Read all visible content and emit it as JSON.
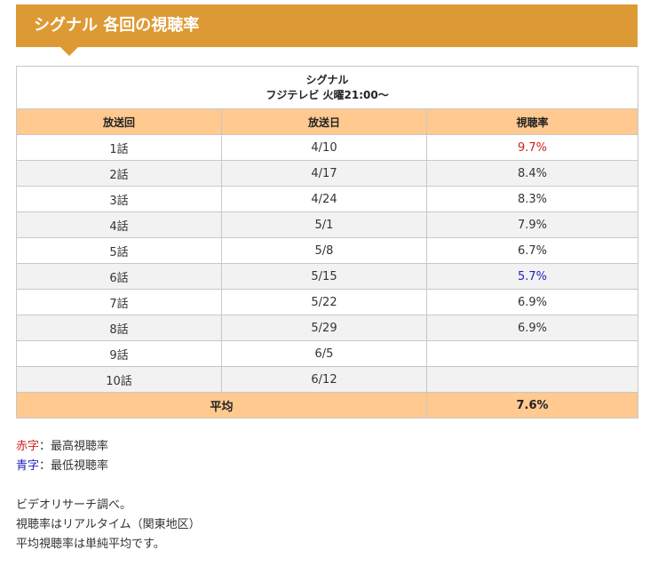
{
  "title": "シグナル 各回の視聴率",
  "table": {
    "caption_line1": "シグナル",
    "caption_line2": "フジテレビ 火曜21:00〜",
    "headers": [
      "放送回",
      "放送日",
      "視聴率"
    ],
    "rows": [
      {
        "episode": "1話",
        "date": "4/10",
        "rating": "9.7%",
        "mark": "high"
      },
      {
        "episode": "2話",
        "date": "4/17",
        "rating": "8.4%",
        "mark": ""
      },
      {
        "episode": "3話",
        "date": "4/24",
        "rating": "8.3%",
        "mark": ""
      },
      {
        "episode": "4話",
        "date": "5/1",
        "rating": "7.9%",
        "mark": ""
      },
      {
        "episode": "5話",
        "date": "5/8",
        "rating": "6.7%",
        "mark": ""
      },
      {
        "episode": "6話",
        "date": "5/15",
        "rating": "5.7%",
        "mark": "low"
      },
      {
        "episode": "7話",
        "date": "5/22",
        "rating": "6.9%",
        "mark": ""
      },
      {
        "episode": "8話",
        "date": "5/29",
        "rating": "6.9%",
        "mark": ""
      },
      {
        "episode": "9話",
        "date": "6/5",
        "rating": "",
        "mark": ""
      },
      {
        "episode": "10話",
        "date": "6/12",
        "rating": "",
        "mark": ""
      }
    ],
    "average_label": "平均",
    "average_value": "7.6%"
  },
  "legend": {
    "red_label": "赤字",
    "red_text": "：最高視聴率",
    "blue_label": "青字",
    "blue_text": "：最低視聴率"
  },
  "notes": {
    "line1": "ビデオリサーチ調べ。",
    "line2": "視聴率はリアルタイム（関東地区）",
    "line3": "平均視聴率は単純平均です。"
  },
  "colors": {
    "heading_bg": "#dd9a34",
    "header_bg": "#ffc98f",
    "high": "#cc2222",
    "low": "#2222bb"
  }
}
